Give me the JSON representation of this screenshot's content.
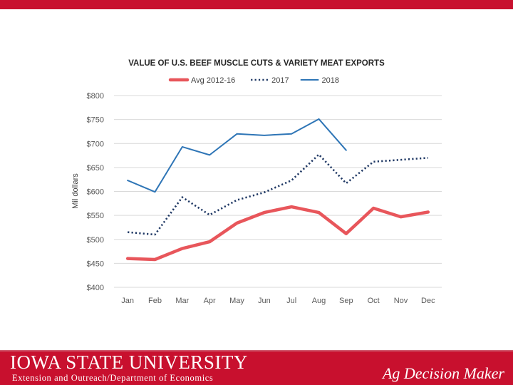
{
  "colors": {
    "brand_red": "#c8102e",
    "avg_series": "#e8565b",
    "series_2017": "#1f3864",
    "series_2018": "#2e75b6"
  },
  "footer": {
    "university_name": "Iowa State University",
    "department": "Extension and Outreach/Department of Economics",
    "program_logo": "Ag Decision Maker"
  },
  "chart_data": {
    "type": "line",
    "title": "VALUE OF U.S. BEEF MUSCLE CUTS & VARIETY MEAT EXPORTS",
    "ylabel": "Mil dollars",
    "xlabel": "",
    "ylim": [
      400,
      800
    ],
    "yticks": [
      400,
      450,
      500,
      550,
      600,
      650,
      700,
      750,
      800
    ],
    "ytick_labels": [
      "$400",
      "$450",
      "$500",
      "$550",
      "$600",
      "$650",
      "$700",
      "$750",
      "$800"
    ],
    "categories": [
      "Jan",
      "Feb",
      "Mar",
      "Apr",
      "May",
      "Jun",
      "Jul",
      "Aug",
      "Sep",
      "Oct",
      "Nov",
      "Dec"
    ],
    "legend_position": "top",
    "series": [
      {
        "name": "Avg 2012-16",
        "style": "thick-solid",
        "color": "#e8565b",
        "values": [
          460,
          458,
          481,
          495,
          534,
          556,
          568,
          556,
          512,
          565,
          547,
          557
        ]
      },
      {
        "name": "2017",
        "style": "dotted",
        "color": "#1f3864",
        "values": [
          515,
          510,
          588,
          551,
          582,
          598,
          623,
          677,
          617,
          662,
          666,
          670
        ]
      },
      {
        "name": "2018",
        "style": "solid",
        "color": "#2e75b6",
        "values": [
          623,
          599,
          693,
          676,
          720,
          717,
          720,
          751,
          686,
          null,
          null,
          null
        ]
      }
    ]
  }
}
